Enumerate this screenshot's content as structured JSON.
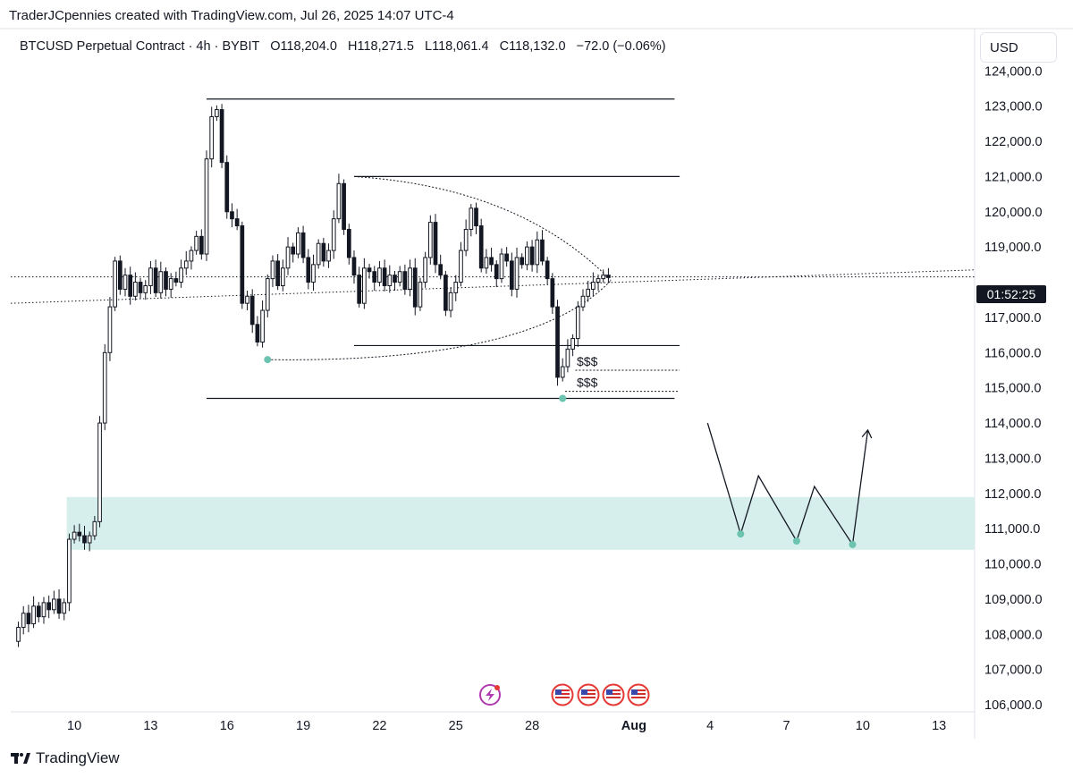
{
  "header": {
    "credit": "TraderJCpennies created with TradingView.com, Jul 26, 2025 14:07 UTC-4"
  },
  "legend": {
    "symbol": "BTCUSD Perpetual Contract · 4h · BYBIT",
    "open_label": "O",
    "open": "118,204.0",
    "high_label": "H",
    "high": "118,271.5",
    "low_label": "L",
    "low": "118,061.4",
    "close_label": "C",
    "close": "118,132.0",
    "change": "−72.0 (−0.06%)"
  },
  "scale": {
    "currency": "USD",
    "countdown": "01:52:25"
  },
  "footer": {
    "brand": "TradingView",
    "logo_icon": "tradingview-logo-icon"
  },
  "colors": {
    "candle": "#131722",
    "zone_fill": "#d6efec",
    "marker": "#6cc4b0",
    "text": "#131722",
    "grid_border": "#e0e3eb"
  },
  "chart_data": {
    "type": "candlestick",
    "symbol": "BTCUSD",
    "timeframe": "4h",
    "y_ticks": [
      "124,000.0",
      "123,000.0",
      "122,000.0",
      "121,000.0",
      "120,000.0",
      "119,000.0",
      "117,000.0",
      "116,000.0",
      "115,000.0",
      "114,000.0",
      "113,000.0",
      "112,000.0",
      "111,000.0",
      "110,000.0",
      "109,000.0",
      "108,000.0",
      "107,000.0",
      "106,000.0"
    ],
    "y_tick_values": [
      124000,
      123000,
      122000,
      121000,
      120000,
      119000,
      117000,
      116000,
      115000,
      114000,
      113000,
      112000,
      111000,
      110000,
      109000,
      108000,
      107000,
      106000
    ],
    "x_ticks": [
      "10",
      "13",
      "16",
      "19",
      "22",
      "25",
      "28",
      "Aug",
      "4",
      "7",
      "10",
      "13"
    ],
    "x_tick_days": [
      10,
      13,
      16,
      19,
      22,
      25,
      28,
      32,
      35,
      38,
      41,
      44
    ],
    "ylim": [
      105800,
      125200
    ],
    "xlim_days": [
      7.5,
      45.4
    ],
    "current_price": 118132,
    "close_series": [
      [
        7.6,
        107800
      ],
      [
        7.8,
        108200
      ],
      [
        8.0,
        108600
      ],
      [
        8.2,
        108300
      ],
      [
        8.4,
        108800
      ],
      [
        8.6,
        108500
      ],
      [
        8.8,
        108900
      ],
      [
        9.0,
        108700
      ],
      [
        9.2,
        109000
      ],
      [
        9.4,
        108600
      ],
      [
        9.6,
        108900
      ],
      [
        9.8,
        110700
      ],
      [
        10.0,
        110900
      ],
      [
        10.2,
        110800
      ],
      [
        10.4,
        110600
      ],
      [
        10.6,
        110800
      ],
      [
        10.8,
        111200
      ],
      [
        11.0,
        114000
      ],
      [
        11.2,
        116000
      ],
      [
        11.4,
        117300
      ],
      [
        11.6,
        118600
      ],
      [
        11.8,
        117800
      ],
      [
        12.0,
        118200
      ],
      [
        12.2,
        117600
      ],
      [
        12.4,
        118000
      ],
      [
        12.6,
        117700
      ],
      [
        12.8,
        117900
      ],
      [
        13.0,
        118400
      ],
      [
        13.2,
        117700
      ],
      [
        13.4,
        118300
      ],
      [
        13.6,
        117800
      ],
      [
        13.8,
        118100
      ],
      [
        14.0,
        118000
      ],
      [
        14.2,
        118400
      ],
      [
        14.4,
        118600
      ],
      [
        14.6,
        118900
      ],
      [
        14.8,
        119300
      ],
      [
        15.0,
        118800
      ],
      [
        15.2,
        121500
      ],
      [
        15.4,
        122700
      ],
      [
        15.6,
        122900
      ],
      [
        15.8,
        121400
      ],
      [
        16.0,
        120000
      ],
      [
        16.2,
        119800
      ],
      [
        16.4,
        119600
      ],
      [
        16.6,
        117400
      ],
      [
        16.8,
        117600
      ],
      [
        17.0,
        116800
      ],
      [
        17.2,
        116300
      ],
      [
        17.4,
        117200
      ],
      [
        17.6,
        118100
      ],
      [
        17.8,
        118600
      ],
      [
        18.0,
        117900
      ],
      [
        18.2,
        118400
      ],
      [
        18.4,
        119000
      ],
      [
        18.6,
        118800
      ],
      [
        18.8,
        119400
      ],
      [
        19.0,
        118700
      ],
      [
        19.2,
        118000
      ],
      [
        19.4,
        118500
      ],
      [
        19.6,
        119100
      ],
      [
        19.8,
        118600
      ],
      [
        20.0,
        118900
      ],
      [
        20.2,
        119800
      ],
      [
        20.4,
        120800
      ],
      [
        20.6,
        119500
      ],
      [
        20.8,
        118700
      ],
      [
        21.0,
        118200
      ],
      [
        21.2,
        117400
      ],
      [
        21.4,
        118400
      ],
      [
        21.6,
        118300
      ],
      [
        21.8,
        118000
      ],
      [
        22.0,
        118400
      ],
      [
        22.2,
        117900
      ],
      [
        22.4,
        118200
      ],
      [
        22.6,
        118000
      ],
      [
        22.8,
        118300
      ],
      [
        23.0,
        117800
      ],
      [
        23.2,
        118400
      ],
      [
        23.4,
        117300
      ],
      [
        23.6,
        118000
      ],
      [
        23.8,
        118700
      ],
      [
        24.0,
        119700
      ],
      [
        24.2,
        118500
      ],
      [
        24.4,
        118200
      ],
      [
        24.6,
        117200
      ],
      [
        24.8,
        117700
      ],
      [
        25.0,
        118000
      ],
      [
        25.2,
        118900
      ],
      [
        25.4,
        119500
      ],
      [
        25.6,
        120100
      ],
      [
        25.8,
        119600
      ],
      [
        26.0,
        118400
      ],
      [
        26.2,
        118700
      ],
      [
        26.4,
        118500
      ],
      [
        26.6,
        118100
      ],
      [
        26.8,
        118800
      ],
      [
        27.0,
        118600
      ],
      [
        27.2,
        117800
      ],
      [
        27.4,
        118700
      ],
      [
        27.6,
        118500
      ],
      [
        27.8,
        119000
      ],
      [
        28.0,
        118500
      ],
      [
        28.2,
        119200
      ],
      [
        28.4,
        118600
      ],
      [
        28.6,
        118100
      ],
      [
        28.8,
        117300
      ],
      [
        29.0,
        115300
      ],
      [
        29.2,
        115600
      ],
      [
        29.4,
        116100
      ],
      [
        29.6,
        116400
      ],
      [
        29.8,
        117300
      ],
      [
        30.0,
        117600
      ],
      [
        30.2,
        117800
      ],
      [
        30.4,
        118000
      ],
      [
        30.6,
        118100
      ],
      [
        30.8,
        118200
      ],
      [
        31.0,
        118132
      ]
    ],
    "levels": [
      {
        "price": 123200,
        "from_day": 15.2,
        "to_day": 33.6,
        "style": "solid"
      },
      {
        "price": 121000,
        "from_day": 21.0,
        "to_day": 33.8,
        "style": "solid"
      },
      {
        "price": 116200,
        "from_day": 21.0,
        "to_day": 33.8,
        "style": "solid"
      },
      {
        "price": 115500,
        "from_day": 29.7,
        "to_day": 33.8,
        "style": "dotted",
        "label": "$$$"
      },
      {
        "price": 114900,
        "from_day": 29.3,
        "to_day": 33.8,
        "style": "dotted",
        "label": "$$$"
      },
      {
        "price": 114700,
        "from_day": 15.2,
        "to_day": 33.6,
        "style": "solid"
      }
    ],
    "zone": {
      "top": 111900,
      "bottom": 110400,
      "from_day": 9.7,
      "to_day": 45.4
    },
    "trendline": {
      "from": [
        7.5,
        117400
      ],
      "to": [
        45.4,
        118350
      ],
      "style": "dotted"
    },
    "hline_current": {
      "price": 118150,
      "style": "dotted"
    },
    "triangle_wedge": {
      "left": [
        17.6,
        115800
      ],
      "apex": [
        31.1,
        118050
      ],
      "top": [
        21.0,
        121000
      ],
      "bottom": [
        24.0,
        116200
      ]
    },
    "swing_markers": [
      [
        17.6,
        115800
      ],
      [
        29.2,
        114700
      ],
      [
        36.2,
        110850
      ],
      [
        38.4,
        110650
      ],
      [
        40.6,
        110550
      ]
    ],
    "projection_path": [
      [
        34.9,
        114000
      ],
      [
        36.2,
        110850
      ],
      [
        36.9,
        112500
      ],
      [
        38.4,
        110650
      ],
      [
        39.1,
        112200
      ],
      [
        40.6,
        110550
      ],
      [
        41.2,
        113800
      ]
    ],
    "event_icons": [
      "lightning-icon",
      "us-flag-icon",
      "us-flag-icon",
      "us-flag-icon",
      "us-flag-icon"
    ]
  }
}
